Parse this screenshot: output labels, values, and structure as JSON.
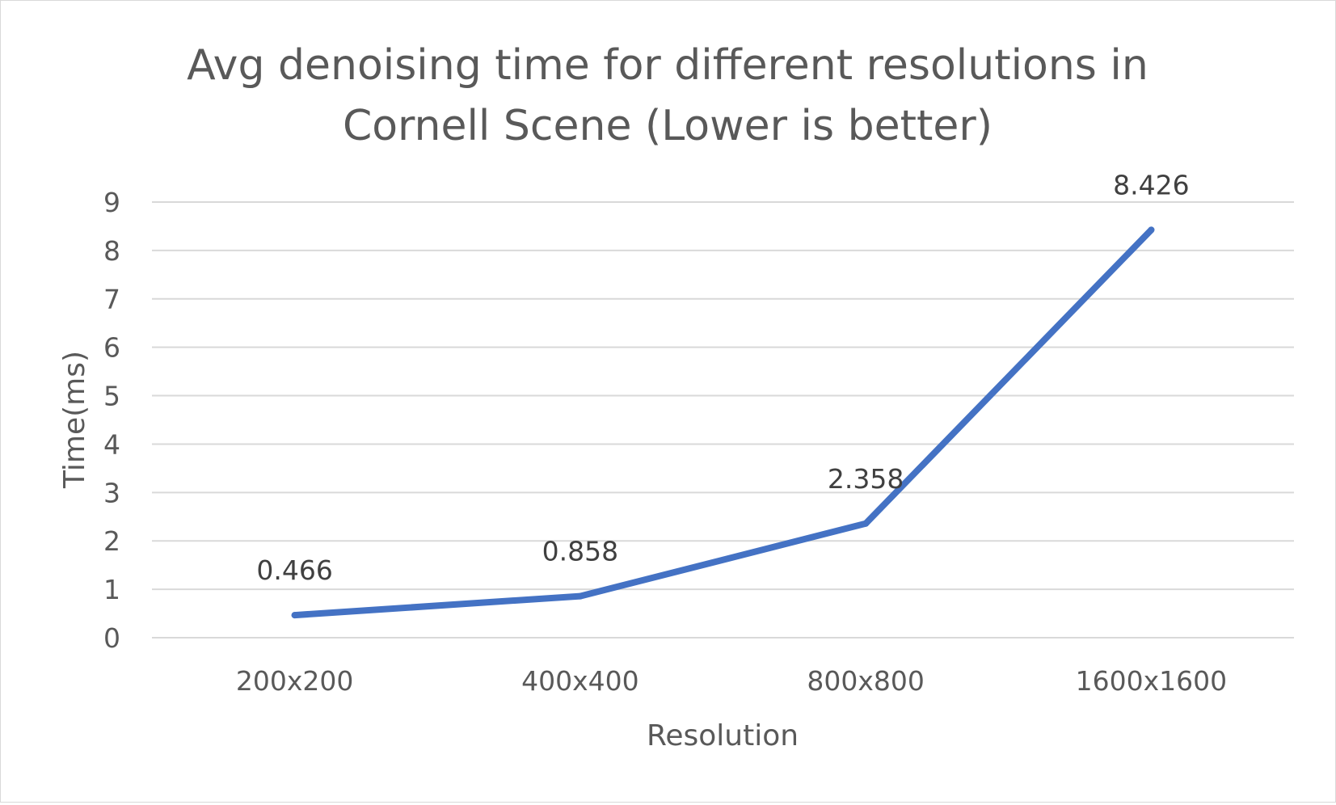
{
  "chart_data": {
    "type": "line",
    "title_lines": [
      "Avg denoising time for different resolutions in",
      "Cornell Scene (Lower is better)"
    ],
    "xlabel": "Resolution",
    "ylabel": "Time(ms)",
    "categories": [
      "200x200",
      "400x400",
      "800x800",
      "1600x1600"
    ],
    "series": [
      {
        "values": [
          0.466,
          0.858,
          2.358,
          8.426
        ],
        "labels": [
          "0.466",
          "0.858",
          "2.358",
          "8.426"
        ],
        "color": "#4472c4"
      }
    ],
    "ylim": [
      0,
      9
    ],
    "yticks": [
      "0",
      "1",
      "2",
      "3",
      "4",
      "5",
      "6",
      "7",
      "8",
      "9"
    ],
    "grid": true,
    "legend": "none"
  }
}
